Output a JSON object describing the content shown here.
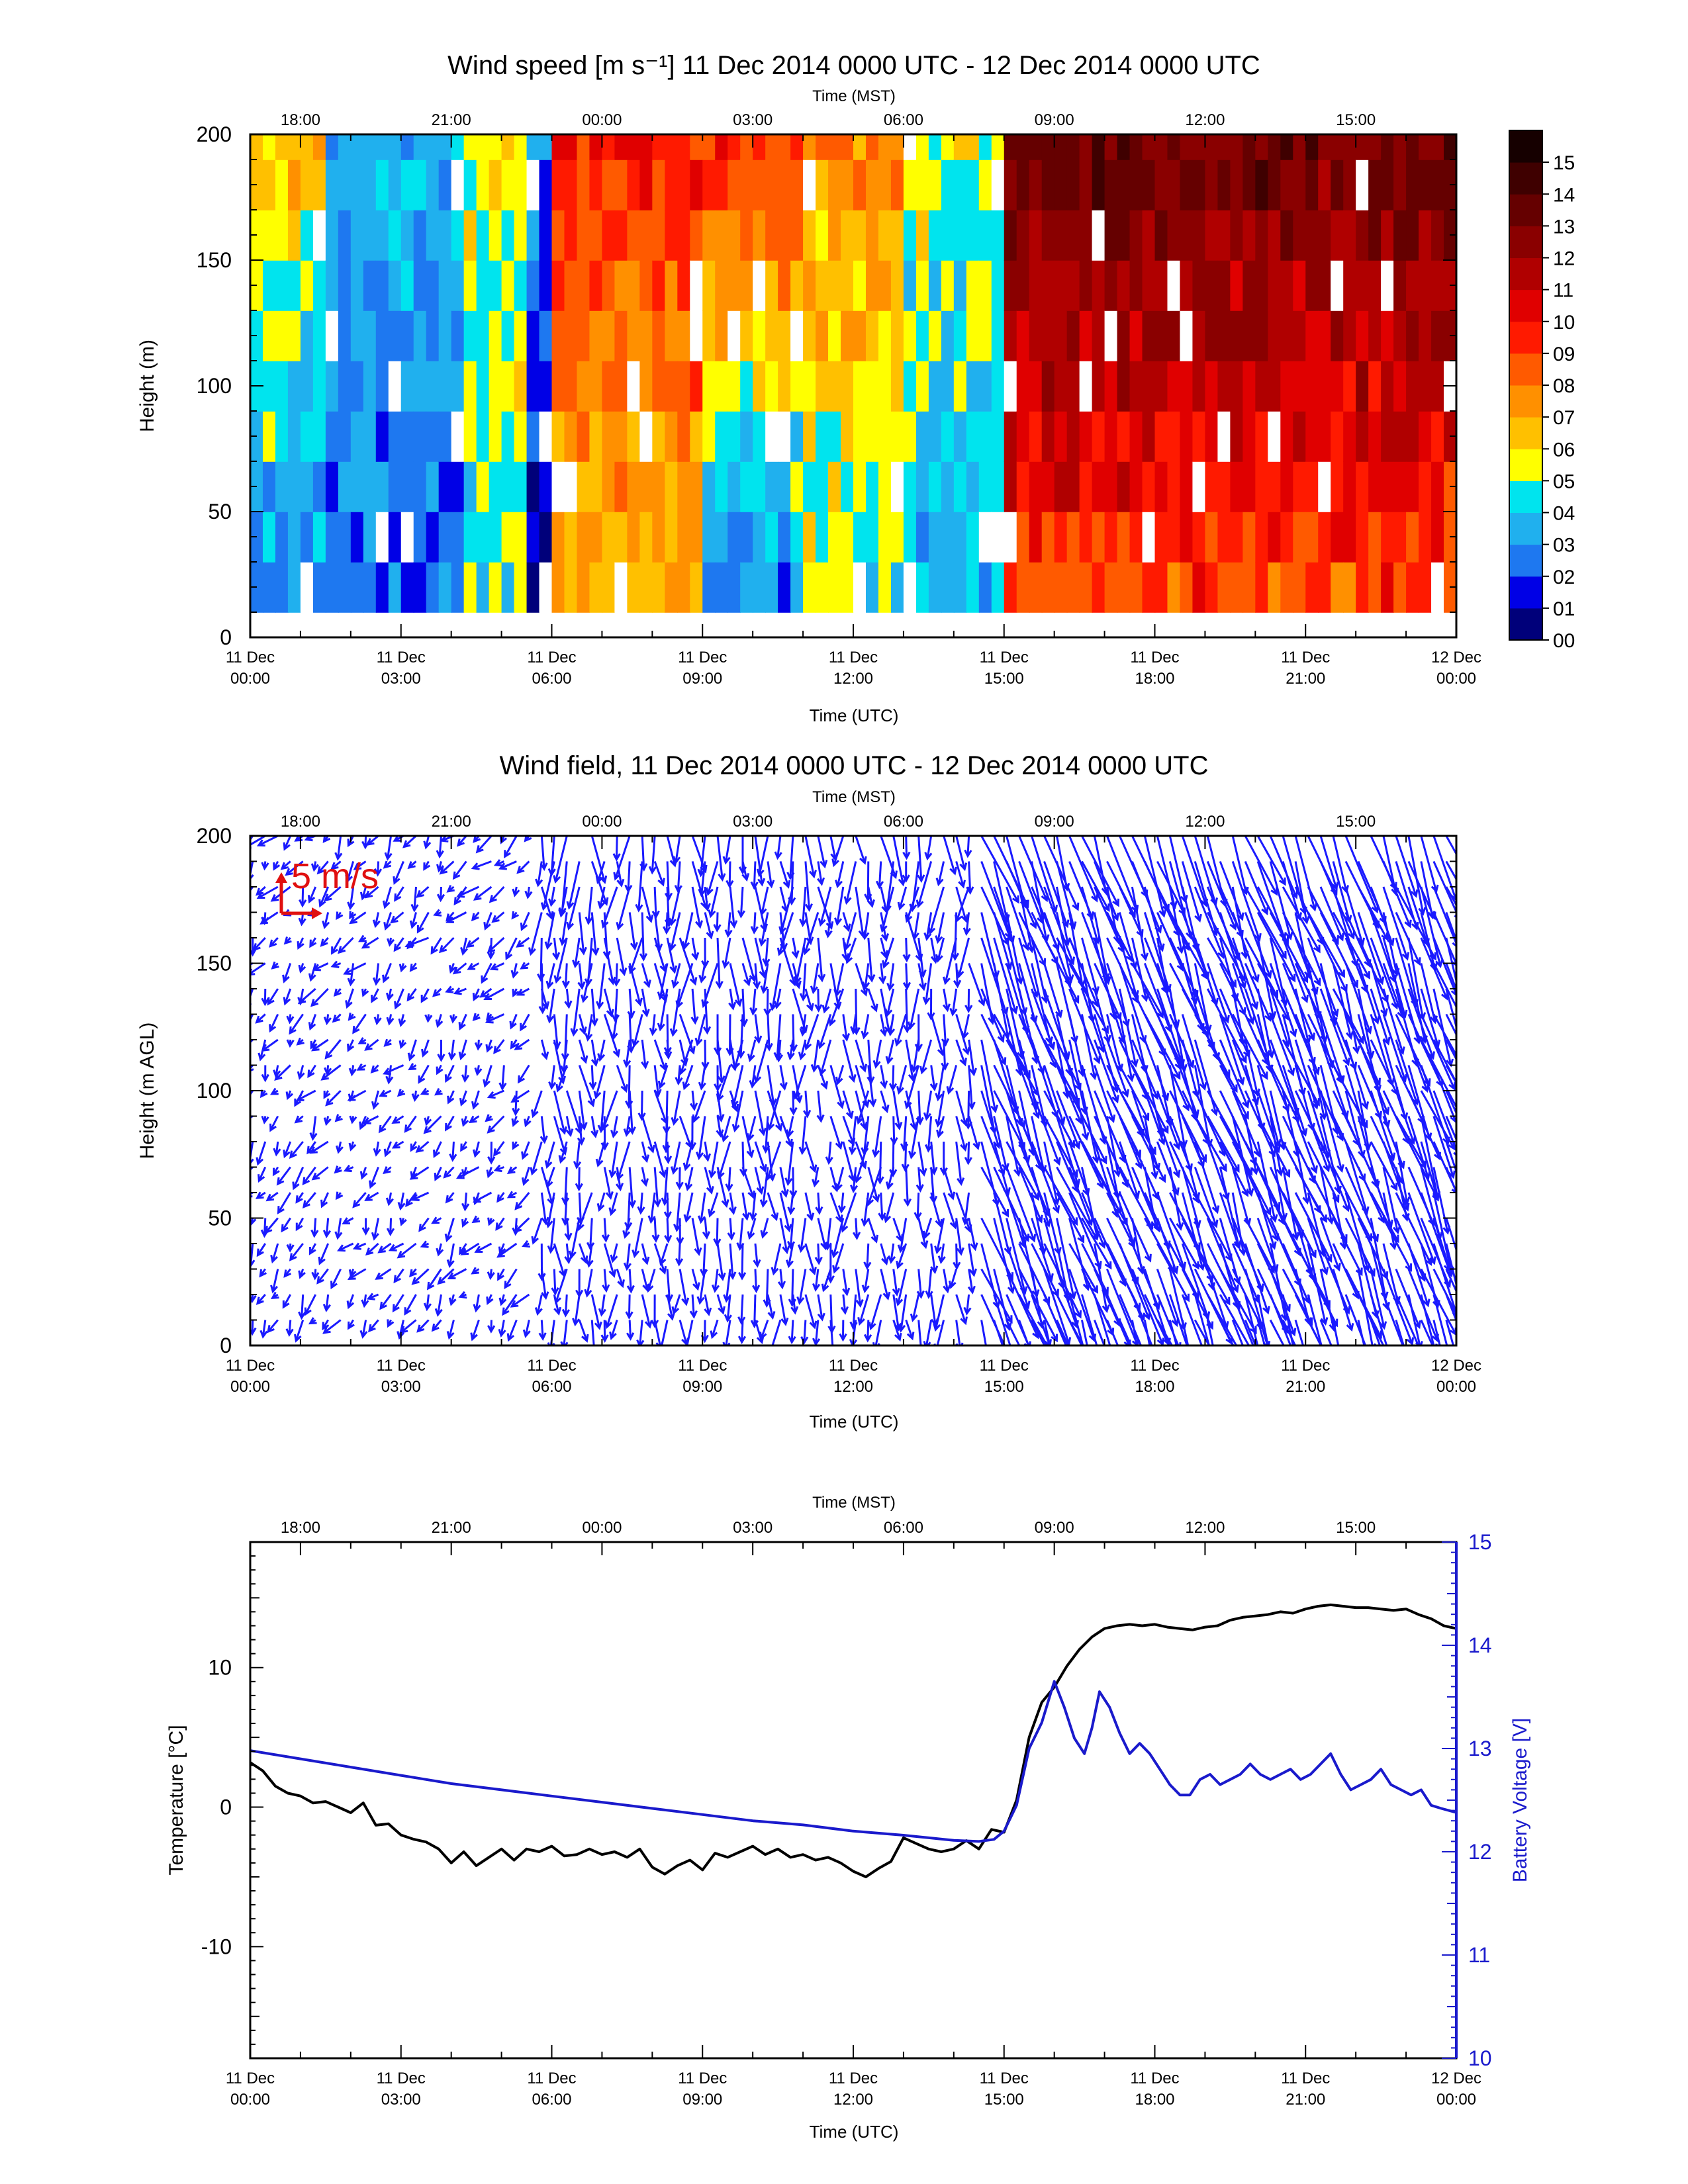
{
  "time_axis": {
    "utc_ticks": [
      "11 Dec|00:00",
      "11 Dec|03:00",
      "11 Dec|06:00",
      "11 Dec|09:00",
      "11 Dec|12:00",
      "11 Dec|15:00",
      "11 Dec|18:00",
      "11 Dec|21:00",
      "12 Dec|00:00"
    ],
    "mst_ticks": [
      "18:00",
      "21:00",
      "00:00",
      "03:00",
      "06:00",
      "09:00",
      "12:00",
      "15:00"
    ],
    "utc_label": "Time (UTC)",
    "mst_label": "Time (MST)"
  },
  "chart_data": [
    {
      "type": "heatmap",
      "title": "Wind speed [m s⁻¹] 11 Dec 2014 0000 UTC - 12 Dec 2014 0000 UTC",
      "xlabel": "Time (UTC)",
      "x2label": "Time (MST)",
      "ylabel": "Height (m)",
      "yticks": [
        0,
        50,
        100,
        150,
        200
      ],
      "ylim": [
        0,
        200
      ],
      "xlim_hours_utc": [
        0,
        24
      ],
      "colorbar": {
        "labels": [
          "00",
          "01",
          "02",
          "03",
          "04",
          "05",
          "06",
          "07",
          "08",
          "09",
          "10",
          "11",
          "12",
          "13",
          "14",
          "15"
        ],
        "colors": [
          "#00007a",
          "#0000e6",
          "#1e78f0",
          "#20b0ee",
          "#00e4ee",
          "#ffff00",
          "#ffc000",
          "#ff9000",
          "#ff5a00",
          "#ff1a00",
          "#e00000",
          "#b00000",
          "#8a0000",
          "#650000",
          "#3f0000",
          "#160000"
        ]
      },
      "height_levels_m": [
        10,
        30,
        50,
        70,
        90,
        110,
        130,
        150,
        170,
        190,
        200
      ],
      "approx_speed_by_period": [
        {
          "utc_hours": [
            0,
            1.6
          ],
          "low": 2.5,
          "high": 6.5
        },
        {
          "utc_hours": [
            1.6,
            4.3
          ],
          "low": 2.5,
          "high": 3.5
        },
        {
          "utc_hours": [
            4.3,
            5.6
          ],
          "low": 4.5,
          "high": 6.0
        },
        {
          "utc_hours": [
            5.6,
            6.0
          ],
          "low": 1.0,
          "high": 3.0
        },
        {
          "utc_hours": [
            6.0,
            9.0
          ],
          "low": 6.5,
          "high": 9.5
        },
        {
          "utc_hours": [
            9.0,
            11.0
          ],
          "low": 2.0,
          "high": 9.5
        },
        {
          "utc_hours": [
            11.0,
            13.0
          ],
          "low": 4.5,
          "high": 7.5
        },
        {
          "utc_hours": [
            13.0,
            15.0
          ],
          "low": 3.5,
          "high": 5.5
        },
        {
          "utc_hours": [
            15.0,
            24.0
          ],
          "low": 8.5,
          "high": 13.5
        }
      ]
    },
    {
      "type": "quiver",
      "title": "Wind field, 11 Dec 2014 0000 UTC - 12 Dec 2014 0000 UTC",
      "xlabel": "Time (UTC)",
      "x2label": "Time (MST)",
      "ylabel": "Height (m AGL)",
      "yticks": [
        0,
        50,
        100,
        150,
        200
      ],
      "ylim": [
        0,
        200
      ],
      "xlim_hours_utc": [
        0,
        24
      ],
      "reference_vector": "5 m/s",
      "color": "#1a1aff",
      "heights_m": [
        10,
        20,
        30,
        40,
        50,
        60,
        70,
        80,
        90,
        100,
        110,
        120,
        130,
        140,
        150,
        160,
        170,
        180,
        190,
        200
      ],
      "regimes": [
        {
          "utc_hours": [
            0,
            5.8
          ],
          "direction": "light variable, mostly from NE",
          "speed_ms": [
            1,
            4
          ]
        },
        {
          "utc_hours": [
            5.8,
            14.5
          ],
          "direction": "from N to NE (arrows pointing S-SW)",
          "speed_ms": [
            3,
            9
          ]
        },
        {
          "utc_hours": [
            14.5,
            24
          ],
          "direction": "strong from N-NW (arrows pointing S-SE)",
          "speed_ms": [
            9,
            14
          ]
        }
      ]
    },
    {
      "type": "line",
      "xlabel": "Time (UTC)",
      "x2label": "Time (MST)",
      "ylabel": "Temperature [°C]",
      "y2label": "Battery Voltage [V]",
      "yticks": [
        -10,
        0,
        10
      ],
      "ylim": [
        -18,
        19
      ],
      "y2ticks": [
        10,
        11,
        12,
        13,
        14,
        15
      ],
      "y2lim": [
        10,
        15
      ],
      "xlim_hours_utc": [
        0,
        24
      ],
      "series": [
        {
          "name": "Temperature [°C]",
          "axis": "left",
          "color": "#000000",
          "x": [
            0.0,
            0.25,
            0.5,
            0.75,
            1.0,
            1.25,
            1.5,
            1.75,
            2.0,
            2.25,
            2.5,
            2.75,
            3.0,
            3.25,
            3.5,
            3.75,
            4.0,
            4.25,
            4.5,
            4.75,
            5.0,
            5.25,
            5.5,
            5.75,
            6.0,
            6.25,
            6.5,
            6.75,
            7.0,
            7.25,
            7.5,
            7.75,
            8.0,
            8.25,
            8.5,
            8.75,
            9.0,
            9.25,
            9.5,
            9.75,
            10.0,
            10.25,
            10.5,
            10.75,
            11.0,
            11.25,
            11.5,
            11.75,
            12.0,
            12.25,
            12.5,
            12.75,
            13.0,
            13.25,
            13.5,
            13.75,
            14.0,
            14.25,
            14.5,
            14.75,
            15.0,
            15.25,
            15.5,
            15.75,
            16.0,
            16.25,
            16.5,
            16.75,
            17.0,
            17.25,
            17.5,
            17.75,
            18.0,
            18.25,
            18.5,
            18.75,
            19.0,
            19.25,
            19.5,
            19.75,
            20.0,
            20.25,
            20.5,
            20.75,
            21.0,
            21.25,
            21.5,
            21.75,
            22.0,
            22.25,
            22.5,
            22.75,
            23.0,
            23.25,
            23.5,
            23.75,
            24.0
          ],
          "values": [
            3.2,
            2.6,
            1.5,
            1.0,
            0.8,
            0.3,
            0.4,
            0.0,
            -0.4,
            0.3,
            -1.3,
            -1.2,
            -2.0,
            -2.3,
            -2.5,
            -3.0,
            -4.0,
            -3.2,
            -4.2,
            -3.6,
            -3.0,
            -3.8,
            -3.0,
            -3.2,
            -2.8,
            -3.5,
            -3.4,
            -3.0,
            -3.4,
            -3.2,
            -3.6,
            -3.0,
            -4.3,
            -4.8,
            -4.2,
            -3.8,
            -4.5,
            -3.3,
            -3.6,
            -3.2,
            -2.8,
            -3.4,
            -3.0,
            -3.6,
            -3.4,
            -3.8,
            -3.6,
            -4.0,
            -4.6,
            -5.0,
            -4.4,
            -3.9,
            -2.2,
            -2.6,
            -3.0,
            -3.2,
            -3.0,
            -2.4,
            -3.0,
            -1.6,
            -1.8,
            0.5,
            5.0,
            7.5,
            8.6,
            10.1,
            11.3,
            12.2,
            12.8,
            13.0,
            13.1,
            13.0,
            13.1,
            12.9,
            12.8,
            12.7,
            12.9,
            13.0,
            13.4,
            13.6,
            13.7,
            13.8,
            14.0,
            13.9,
            14.2,
            14.4,
            14.5,
            14.4,
            14.3,
            14.3,
            14.2,
            14.1,
            14.2,
            13.8,
            13.5,
            13.0,
            12.8
          ]
        },
        {
          "name": "Battery Voltage [V]",
          "axis": "right",
          "color": "#1a1acc",
          "x": [
            0.0,
            1.0,
            2.0,
            3.0,
            4.0,
            5.0,
            6.0,
            7.0,
            8.0,
            9.0,
            10.0,
            11.0,
            12.0,
            13.0,
            14.0,
            14.5,
            14.8,
            15.0,
            15.25,
            15.5,
            15.75,
            16.0,
            16.2,
            16.4,
            16.6,
            16.75,
            16.9,
            17.1,
            17.3,
            17.5,
            17.7,
            17.9,
            18.1,
            18.3,
            18.5,
            18.7,
            18.9,
            19.1,
            19.3,
            19.5,
            19.7,
            19.9,
            20.1,
            20.3,
            20.5,
            20.7,
            20.9,
            21.1,
            21.3,
            21.5,
            21.7,
            21.9,
            22.1,
            22.3,
            22.5,
            22.7,
            22.9,
            23.1,
            23.3,
            23.5,
            23.7,
            24.0
          ],
          "values": [
            12.98,
            12.9,
            12.82,
            12.74,
            12.66,
            12.6,
            12.54,
            12.48,
            12.42,
            12.36,
            12.3,
            12.26,
            12.2,
            12.16,
            12.11,
            12.1,
            12.12,
            12.2,
            12.45,
            13.0,
            13.25,
            13.65,
            13.4,
            13.1,
            12.95,
            13.2,
            13.55,
            13.4,
            13.15,
            12.95,
            13.05,
            12.95,
            12.8,
            12.65,
            12.55,
            12.55,
            12.7,
            12.75,
            12.65,
            12.7,
            12.75,
            12.85,
            12.75,
            12.7,
            12.75,
            12.8,
            12.7,
            12.75,
            12.85,
            12.95,
            12.75,
            12.6,
            12.65,
            12.7,
            12.8,
            12.65,
            12.6,
            12.55,
            12.6,
            12.45,
            12.42,
            12.38
          ]
        }
      ]
    }
  ]
}
